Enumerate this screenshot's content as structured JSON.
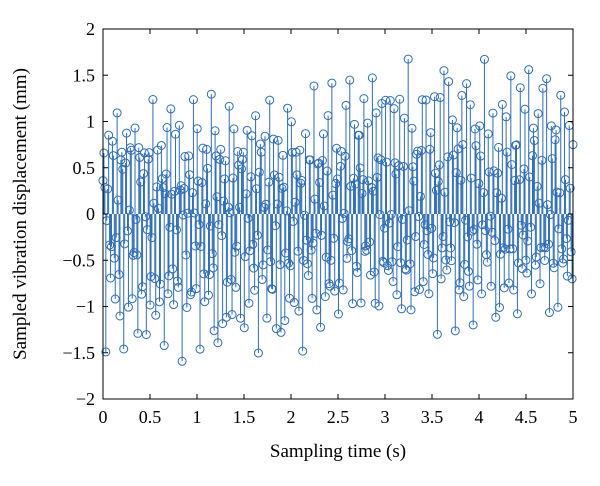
{
  "chart_data": {
    "type": "stem",
    "xlabel": "Sampling time (s)",
    "ylabel": "Sampled vibration displacement (mm)",
    "xlim": [
      0,
      5
    ],
    "ylim": [
      -2,
      2
    ],
    "xticks": [
      0,
      0.5,
      1,
      1.5,
      2,
      2.5,
      3,
      3.5,
      4,
      4.5,
      5
    ],
    "xtick_labels": [
      "0",
      "0.5",
      "1",
      "1.5",
      "2",
      "2.5",
      "3",
      "3.5",
      "4",
      "4.5",
      "5"
    ],
    "yticks": [
      -2,
      -1.5,
      -1,
      -0.5,
      0,
      0.5,
      1,
      1.5,
      2
    ],
    "ytick_labels": [
      "−2",
      "−1.5",
      "−1",
      "−0.5",
      "0",
      "0.5",
      "1",
      "1.5",
      "2"
    ],
    "grid": false,
    "marker": "circle",
    "baseline": 0,
    "color": "#2f6db5",
    "series": [
      {
        "envelope": [
          {
            "x": 0,
            "upper": 1.2,
            "lower": -1.55
          },
          {
            "x": 1.0,
            "upper": 1.25,
            "lower": -1.6
          },
          {
            "x": 2.0,
            "upper": 1.25,
            "lower": -1.6
          },
          {
            "x": 2.5,
            "upper": 1.6,
            "lower": -1.3
          },
          {
            "x": 3.5,
            "upper": 1.7,
            "lower": -1.25
          },
          {
            "x": 4.5,
            "upper": 1.65,
            "lower": -1.2
          },
          {
            "x": 5.0,
            "upper": 1.5,
            "lower": -1.25
          }
        ],
        "sample_count": 500
      }
    ]
  }
}
